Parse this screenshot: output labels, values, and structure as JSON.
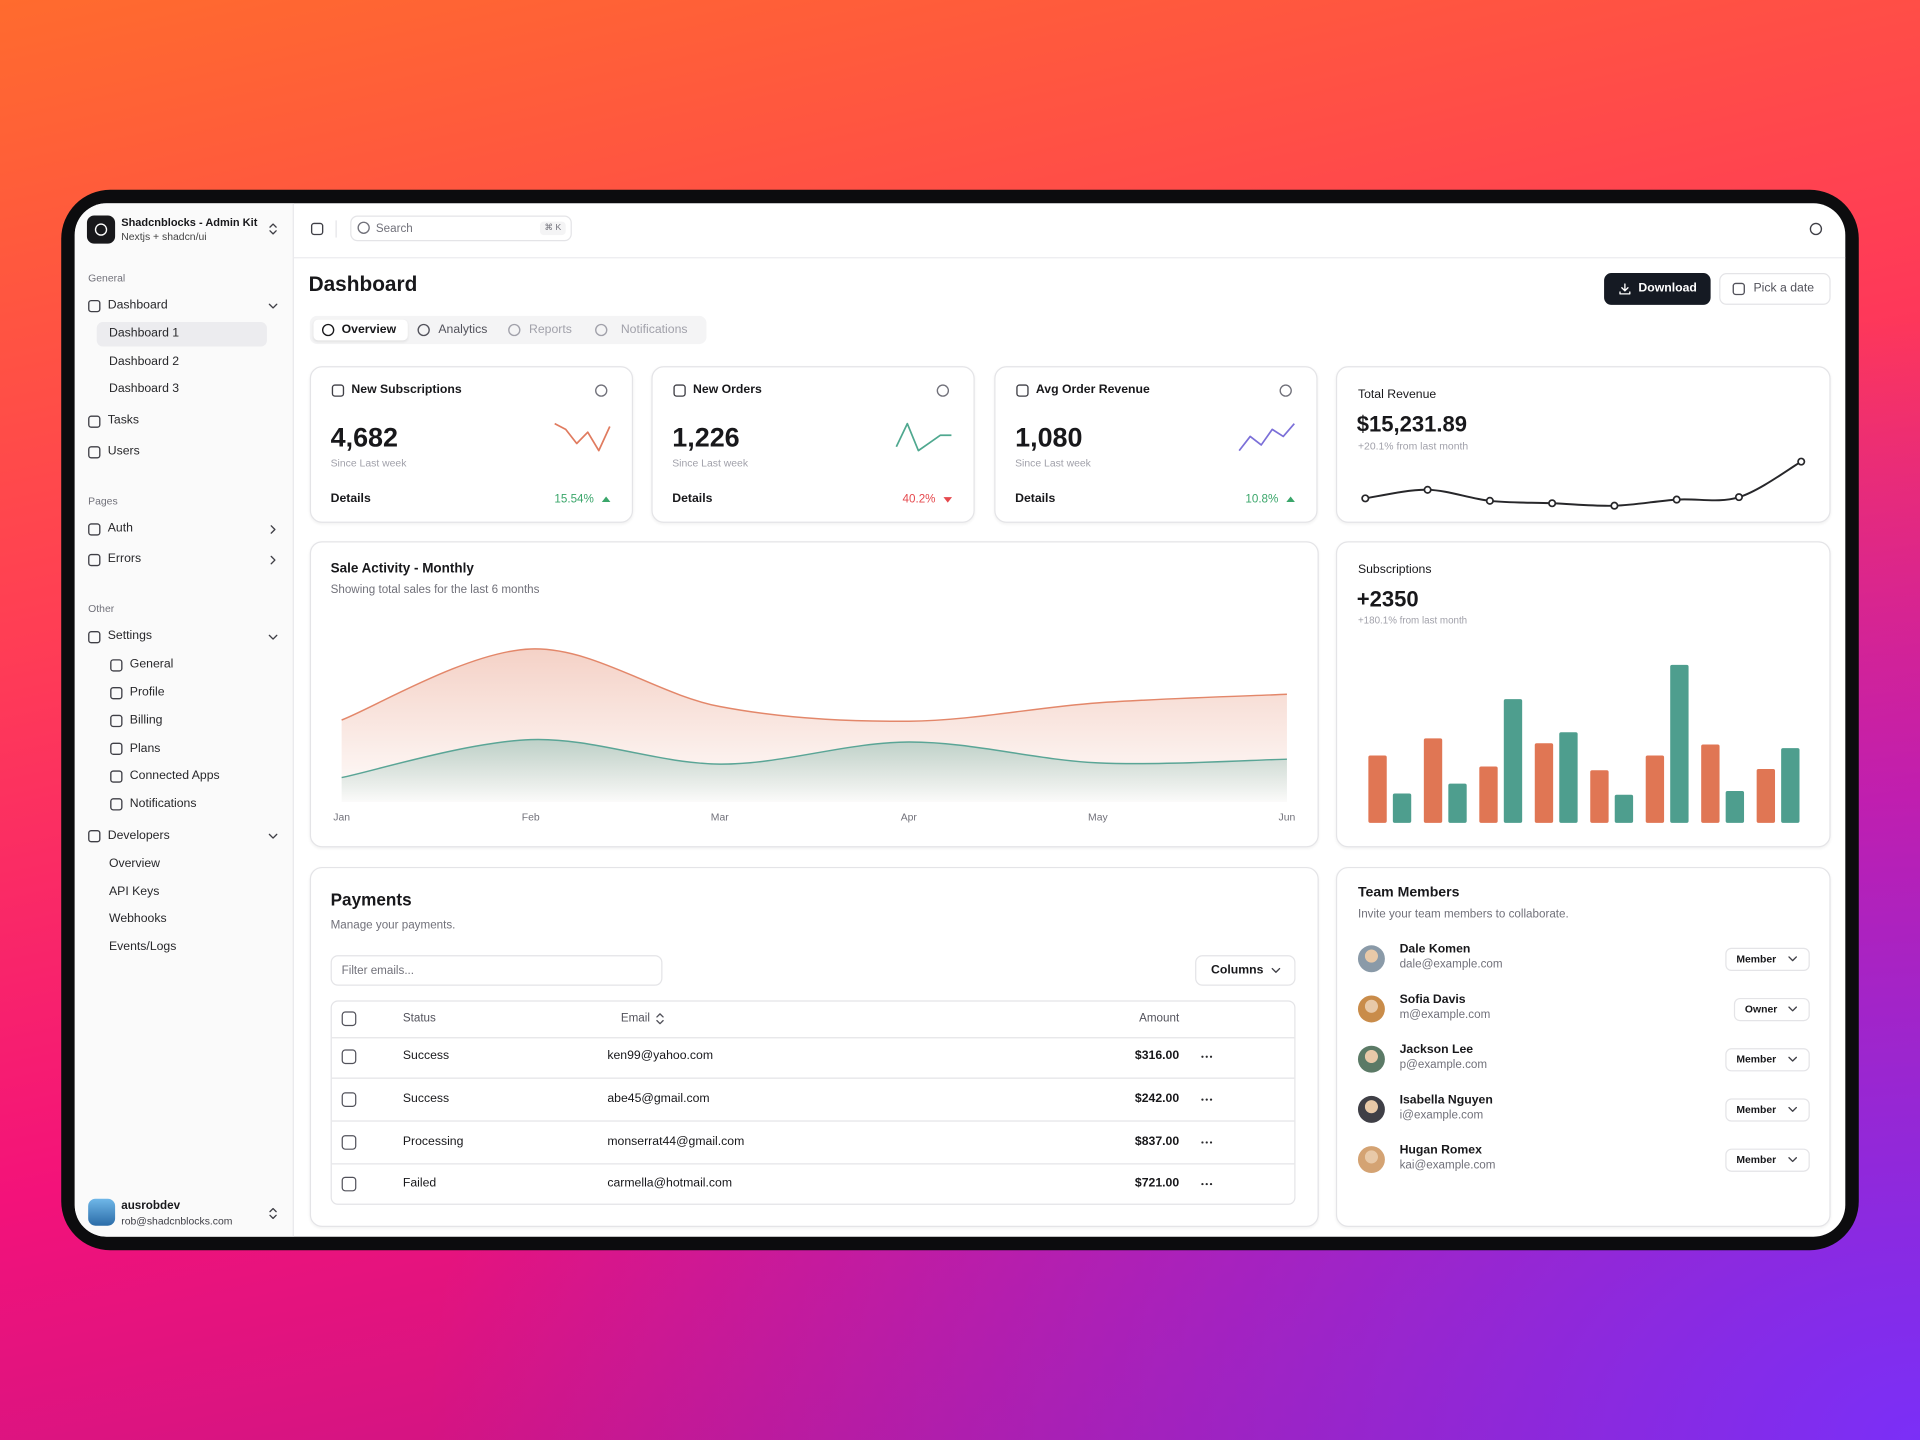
{
  "sidebar": {
    "brand": {
      "title": "Shadcnblocks - Admin Kit",
      "subtitle": "Nextjs + shadcn/ui"
    },
    "groups": [
      {
        "label": "General",
        "items": [
          {
            "label": "Dashboard",
            "children": [
              "Dashboard 1",
              "Dashboard 2",
              "Dashboard 3"
            ]
          },
          {
            "label": "Tasks"
          },
          {
            "label": "Users"
          }
        ]
      },
      {
        "label": "Pages",
        "items": [
          {
            "label": "Auth"
          },
          {
            "label": "Errors"
          }
        ]
      },
      {
        "label": "Other",
        "items": [
          {
            "label": "Settings",
            "children": [
              "General",
              "Profile",
              "Billing",
              "Plans",
              "Connected Apps",
              "Notifications"
            ]
          },
          {
            "label": "Developers",
            "children": [
              "Overview",
              "API Keys",
              "Webhooks",
              "Events/Logs"
            ]
          }
        ]
      }
    ],
    "user": {
      "name": "ausrobdev",
      "email": "rob@shadcnblocks.com"
    }
  },
  "header": {
    "search": "Search",
    "shortcut": "⌘ K"
  },
  "page": {
    "title": "Dashboard",
    "actions": {
      "download": "Download",
      "date": "Pick a date"
    },
    "tabs": [
      "Overview",
      "Analytics",
      "Reports",
      "Notifications"
    ]
  },
  "stats": [
    {
      "label": "New Subscriptions",
      "value": "4,682",
      "note": "Since Last week",
      "link": "Details",
      "change": "15.54%",
      "direction": "up"
    },
    {
      "label": "New Orders",
      "value": "1,226",
      "note": "Since Last week",
      "link": "Details",
      "change": "40.2%",
      "direction": "down"
    },
    {
      "label": "Avg Order Revenue",
      "value": "1,080",
      "note": "Since Last week",
      "link": "Details",
      "change": "10.8%",
      "direction": "up"
    }
  ],
  "revenue": {
    "label": "Total Revenue",
    "value": "$15,231.89",
    "note": "+20.1% from last month"
  },
  "subscriptions": {
    "label": "Subscriptions",
    "value": "+2350",
    "note": "+180.1% from last month"
  },
  "chart_data": [
    {
      "type": "line",
      "color": "#e07b5f",
      "values": [
        19,
        15,
        5,
        13,
        0,
        17
      ]
    },
    {
      "type": "line",
      "color": "#4fa88f",
      "values": [
        6,
        18,
        4,
        8,
        12,
        12
      ]
    },
    {
      "type": "line",
      "color": "#7b6fd8",
      "values": [
        0,
        10,
        4,
        15,
        10,
        19
      ]
    },
    {
      "type": "line",
      "color": "#27272a",
      "markers": true,
      "values": [
        9,
        16,
        7,
        5,
        3,
        8,
        10,
        39
      ]
    },
    {
      "type": "area",
      "title": "Sale Activity - Monthly",
      "subtitle": "Showing total sales for the last 6 months",
      "categories": [
        "Jan",
        "Feb",
        "Mar",
        "Apr",
        "May",
        "Jun"
      ],
      "series": [
        {
          "color": "#e3876a",
          "values": [
            67,
            125,
            78,
            66,
            81,
            88
          ]
        },
        {
          "color": "#5aa596",
          "values": [
            20,
            51,
            31,
            49,
            32,
            35
          ]
        }
      ]
    },
    {
      "type": "bar",
      "series": [
        {
          "color": "#e07654",
          "values": [
            55,
            69,
            46,
            65,
            43,
            55,
            64,
            44
          ]
        },
        {
          "color": "#4e9e8e",
          "values": [
            24,
            32,
            101,
            74,
            23,
            129,
            26,
            61
          ]
        }
      ]
    }
  ],
  "payments": {
    "title": "Payments",
    "subtitle": "Manage your payments.",
    "filter": "Filter emails...",
    "columns_button": "Columns",
    "headers": [
      "Status",
      "Email",
      "Amount"
    ],
    "rows": [
      [
        "Success",
        "ken99@yahoo.com",
        "$316.00"
      ],
      [
        "Success",
        "abe45@gmail.com",
        "$242.00"
      ],
      [
        "Processing",
        "monserrat44@gmail.com",
        "$837.00"
      ],
      [
        "Failed",
        "carmella@hotmail.com",
        "$721.00"
      ]
    ]
  },
  "team": {
    "title": "Team Members",
    "subtitle": "Invite your team members to collaborate.",
    "members": [
      {
        "name": "Dale Komen",
        "email": "dale@example.com",
        "role": "Member"
      },
      {
        "name": "Sofia Davis",
        "email": "m@example.com",
        "role": "Owner"
      },
      {
        "name": "Jackson Lee",
        "email": "p@example.com",
        "role": "Member"
      },
      {
        "name": "Isabella Nguyen",
        "email": "i@example.com",
        "role": "Member"
      },
      {
        "name": "Hugan Romex",
        "email": "kai@example.com",
        "role": "Member"
      }
    ]
  }
}
